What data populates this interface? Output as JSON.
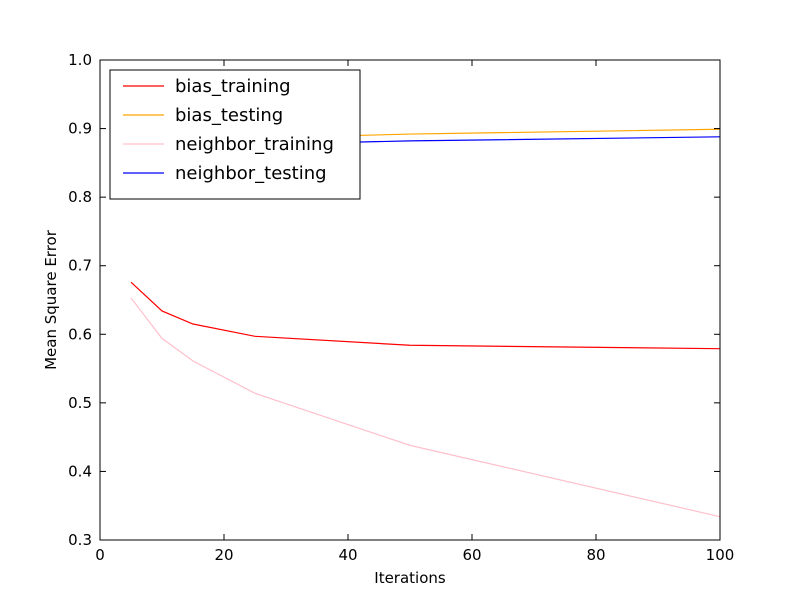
{
  "chart_data": {
    "type": "line",
    "title": "",
    "xlabel": "Iterations",
    "ylabel": "Mean Square Error",
    "xlim": [
      0,
      100
    ],
    "ylim": [
      0.3,
      1.0
    ],
    "xticks": [
      "0",
      "20",
      "40",
      "60",
      "80",
      "100"
    ],
    "yticks": [
      "0.3",
      "0.4",
      "0.5",
      "0.6",
      "0.7",
      "0.8",
      "0.9",
      "1.0"
    ],
    "grid": false,
    "legend_position": "top-left",
    "series": [
      {
        "name": "bias_training",
        "color": "#ff0000",
        "x": [
          5,
          10,
          15,
          25,
          50,
          100
        ],
        "y": [
          0.676,
          0.634,
          0.615,
          0.597,
          0.584,
          0.579
        ]
      },
      {
        "name": "bias_testing",
        "color": "#ffa500",
        "x": [
          5,
          10,
          15,
          25,
          50,
          100
        ],
        "y": [
          0.872,
          0.878,
          0.882,
          0.886,
          0.892,
          0.899
        ]
      },
      {
        "name": "neighbor_training",
        "color": "#ffc0cb",
        "x": [
          5,
          10,
          15,
          25,
          50,
          100
        ],
        "y": [
          0.653,
          0.594,
          0.561,
          0.514,
          0.438,
          0.334
        ]
      },
      {
        "name": "neighbor_testing",
        "color": "#0000ff",
        "x": [
          5,
          10,
          15,
          25,
          50,
          100
        ],
        "y": [
          0.866,
          0.87,
          0.873,
          0.877,
          0.882,
          0.888
        ]
      }
    ]
  }
}
